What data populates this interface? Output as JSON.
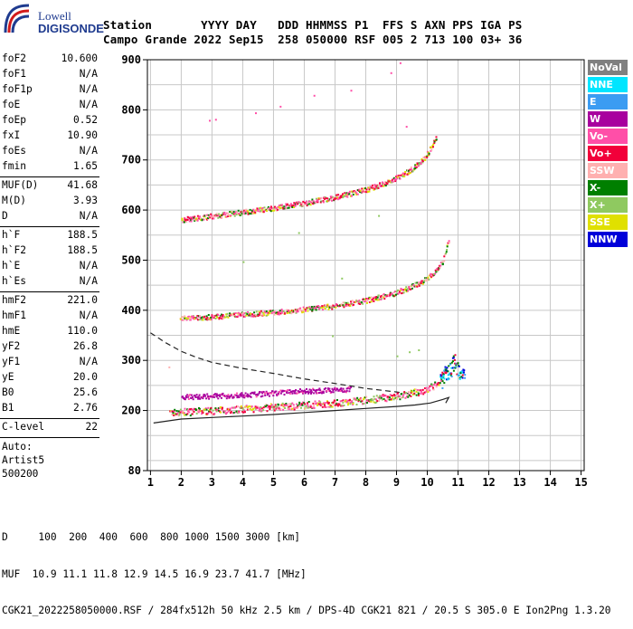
{
  "logo": {
    "line1": "Lowell",
    "line2": "DIGISONDE"
  },
  "header": {
    "row1": "Station       YYYY DAY   DDD HHMMSS P1  FFS S AXN PPS IGA PS",
    "row2": "Campo Grande 2022 Sep15  258 050000 RSF 005 2 713 100 03+ 36"
  },
  "params": [
    {
      "label": "foF2",
      "value": "10.600"
    },
    {
      "label": "foF1",
      "value": "N/A"
    },
    {
      "label": "foF1p",
      "value": "N/A"
    },
    {
      "label": "foE",
      "value": "N/A"
    },
    {
      "label": "foEp",
      "value": "0.52"
    },
    {
      "label": "fxI",
      "value": "10.90"
    },
    {
      "label": "foEs",
      "value": "N/A"
    },
    {
      "label": "fmin",
      "value": "1.65"
    },
    {
      "sep": true
    },
    {
      "label": "MUF(D)",
      "value": "41.68"
    },
    {
      "label": "M(D)",
      "value": "3.93"
    },
    {
      "label": "D",
      "value": "N/A"
    },
    {
      "sep": true
    },
    {
      "label": "h`F",
      "value": "188.5"
    },
    {
      "label": "h`F2",
      "value": "188.5"
    },
    {
      "label": "h`E",
      "value": "N/A"
    },
    {
      "label": "h`Es",
      "value": "N/A"
    },
    {
      "sep": true
    },
    {
      "label": "hmF2",
      "value": "221.0"
    },
    {
      "label": "hmF1",
      "value": "N/A"
    },
    {
      "label": "hmE",
      "value": "110.0"
    },
    {
      "label": "yF2",
      "value": "26.8"
    },
    {
      "label": "yF1",
      "value": "N/A"
    },
    {
      "label": "yE",
      "value": "20.0"
    },
    {
      "label": "B0",
      "value": "25.6"
    },
    {
      "label": "B1",
      "value": "2.76"
    },
    {
      "sep": true
    },
    {
      "label": "C-level",
      "value": "22"
    },
    {
      "sep": true
    }
  ],
  "auto": {
    "line1": "Auto:",
    "line2": "Artist5",
    "line3": "500200"
  },
  "legend": [
    {
      "label": "NoVal",
      "color": "#808080"
    },
    {
      "label": "NNE",
      "color": "#00e5ff"
    },
    {
      "label": "E",
      "color": "#3b9cf2"
    },
    {
      "label": "W",
      "color": "#a8009e"
    },
    {
      "label": "Vo-",
      "color": "#ff4fa8"
    },
    {
      "label": "Vo+",
      "color": "#f2003a"
    },
    {
      "label": "SSW",
      "color": "#ffb0b0"
    },
    {
      "label": "X-",
      "color": "#007f00"
    },
    {
      "label": "X+",
      "color": "#8fc960"
    },
    {
      "label": "SSE",
      "color": "#e0e000"
    },
    {
      "label": "NNW",
      "color": "#0000d9"
    }
  ],
  "footer": {
    "line1": "D     100  200  400  600  800 1000 1500 3000 [km]",
    "line2": "MUF  10.9 11.1 11.8 12.9 14.5 16.9 23.7 41.7 [MHz]",
    "line3": "CGK21_2022258050000.RSF / 284fx512h 50 kHz 2.5 km / DPS-4D CGK21 821 / 20.5 S 305.0 E Ion2Png 1.3.20"
  },
  "chart_data": {
    "type": "scatter",
    "xlabel": "",
    "ylabel": "",
    "xlim": [
      0.9,
      15.1
    ],
    "ylim": [
      80,
      900
    ],
    "xticks": [
      1,
      2,
      3,
      4,
      5,
      6,
      7,
      8,
      9,
      10,
      11,
      12,
      13,
      14,
      15
    ],
    "yticks": [
      200,
      300,
      400,
      500,
      600,
      700,
      800,
      900
    ],
    "yticks_extra": [
      80
    ],
    "grid": true,
    "traces": [
      {
        "name": "o-trace 1st hop",
        "x": [
          1.6,
          2.0,
          3.0,
          4.0,
          5.0,
          6.0,
          7.0,
          8.0,
          9.0,
          9.8,
          10.2,
          10.4,
          10.6
        ],
        "y": [
          197,
          198,
          201,
          204,
          208,
          212,
          216,
          222,
          230,
          240,
          250,
          262,
          282
        ]
      },
      {
        "name": "2nd hop",
        "x": [
          1.95,
          3.0,
          4.0,
          5.0,
          6.0,
          7.0,
          8.0,
          8.8,
          9.4,
          9.8,
          10.2,
          10.5,
          10.7
        ],
        "y": [
          385,
          388,
          393,
          397,
          403,
          410,
          421,
          433,
          446,
          458,
          475,
          500,
          545
        ]
      },
      {
        "name": "3rd hop",
        "x": [
          2.0,
          3.0,
          4.0,
          5.0,
          6.0,
          7.0,
          8.0,
          8.7,
          9.2,
          9.6,
          9.9,
          10.1,
          10.3
        ],
        "y": [
          582,
          589,
          597,
          605,
          615,
          627,
          642,
          657,
          672,
          688,
          705,
          725,
          750
        ]
      },
      {
        "name": "W echoes",
        "x": [
          2.0,
          3.0,
          4.0,
          5.0,
          6.0,
          7.0,
          7.5
        ],
        "y": [
          228,
          230,
          232,
          236,
          240,
          242,
          244
        ]
      },
      {
        "name": "high-frequency spread",
        "x": [
          10.4,
          10.6,
          10.8,
          10.9,
          11.0,
          11.2
        ],
        "y": [
          260,
          275,
          290,
          300,
          270,
          275
        ]
      }
    ],
    "profile_solid": {
      "x": [
        1.1,
        2.0,
        3.0,
        4.0,
        5.0,
        6.0,
        7.0,
        8.0,
        9.0,
        9.6,
        10.1,
        10.5,
        10.7,
        10.6
      ],
      "y": [
        175,
        183,
        186,
        189,
        192,
        196,
        200,
        204,
        208,
        211,
        215,
        222,
        226,
        215
      ]
    },
    "profile_dashed": {
      "x": [
        1.0,
        1.5,
        2.0,
        2.5,
        3.0,
        4.0,
        5.0,
        6.0,
        7.0,
        8.0,
        9.0,
        9.6
      ],
      "y": [
        355,
        335,
        318,
        306,
        296,
        284,
        274,
        263,
        254,
        244,
        237,
        232
      ]
    }
  }
}
